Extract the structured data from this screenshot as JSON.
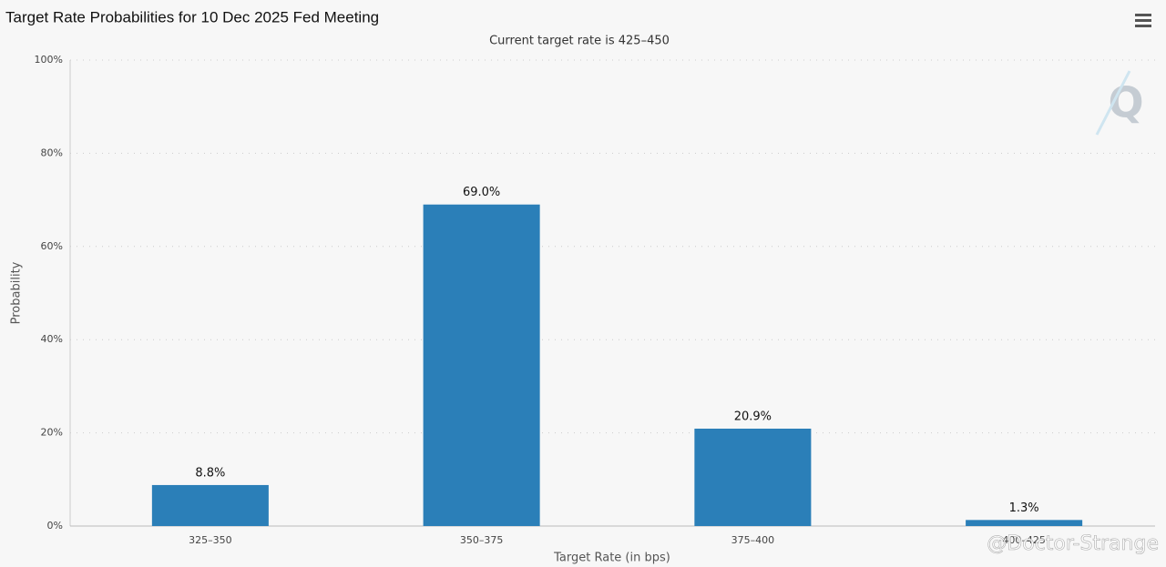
{
  "chart_data": {
    "type": "bar",
    "title": "Target Rate Probabilities for 10 Dec 2025 Fed Meeting",
    "subtitle": "Current target rate is 425–450",
    "x_label": "Target Rate (in bps)",
    "y_label": "Probability",
    "categories": [
      "325–350",
      "350–375",
      "375–400",
      "400–425"
    ],
    "values": [
      8.8,
      69.0,
      20.9,
      1.3
    ],
    "value_labels": [
      "8.8%",
      "69.0%",
      "20.9%",
      "1.3%"
    ],
    "color": "#2b7fb8",
    "ylim": [
      0,
      100
    ],
    "yticks": [
      {
        "value": 0,
        "label": "0%"
      },
      {
        "value": 20,
        "label": "20%"
      },
      {
        "value": 40,
        "label": "40%"
      },
      {
        "value": 60,
        "label": "60%"
      },
      {
        "value": 80,
        "label": "80%"
      },
      {
        "value": 100,
        "label": "100%"
      }
    ],
    "grid": true,
    "watermark": "@Doctor-Strange"
  }
}
